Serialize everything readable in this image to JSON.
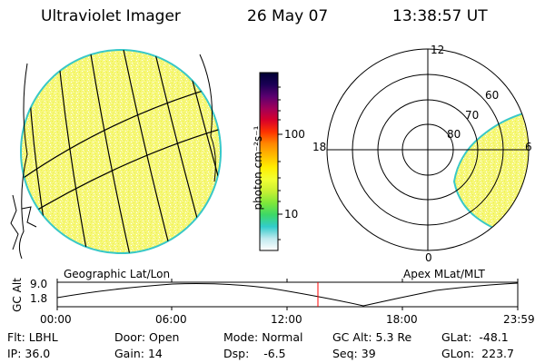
{
  "header": {
    "instrument": "Ultraviolet Imager",
    "date": "26 May 07",
    "time": "13:38:57 UT"
  },
  "colorbar": {
    "unit_label": "photon cm⁻²s⁻¹",
    "ticks": [
      "100",
      "10"
    ],
    "gradient_colors": [
      "#000033",
      "#1a0055",
      "#5a0070",
      "#a0005a",
      "#d8002a",
      "#ff3300",
      "#ff8800",
      "#ffbb00",
      "#ffee00",
      "#f2ff33",
      "#c8f033",
      "#7ee83a",
      "#3cd868",
      "#33cccc",
      "#bfe9ee",
      "#ffffff"
    ]
  },
  "left_panel": {
    "label": "Geographic Lat/Lon",
    "disk_fill": "#f6f77a",
    "disk_edge": "#38c8c8"
  },
  "right_panel": {
    "label": "Apex MLat/MLT",
    "mlt_labels": {
      "top": "12",
      "left": "18",
      "bottom": "0",
      "right": "6"
    },
    "mlat_labels": [
      "60",
      "70",
      "80"
    ]
  },
  "timeline": {
    "y_axis_label": "GC Alt",
    "y_ticks": [
      "9.0",
      "1.8"
    ],
    "x_ticks": [
      "00:00",
      "06:00",
      "12:00",
      "18:00",
      "23:59"
    ],
    "current_marker_color": "#ff0000"
  },
  "status": {
    "flt": {
      "label": "Flt:",
      "value": "LBHL"
    },
    "ip": {
      "label": "IP:",
      "value": "36.0"
    },
    "door": {
      "label": "Door:",
      "value": "Open"
    },
    "gain": {
      "label": "Gain:",
      "value": "14"
    },
    "mode": {
      "label": "Mode:",
      "value": "Normal"
    },
    "dsp": {
      "label": "Dsp:",
      "value": "-6.5"
    },
    "gcalt": {
      "label": "GC Alt:",
      "value": "5.3 Re"
    },
    "seq": {
      "label": "Seq:",
      "value": "39"
    },
    "glat": {
      "label": "GLat:",
      "value": "-48.1"
    },
    "glon": {
      "label": "GLon:",
      "value": "223.7"
    }
  }
}
